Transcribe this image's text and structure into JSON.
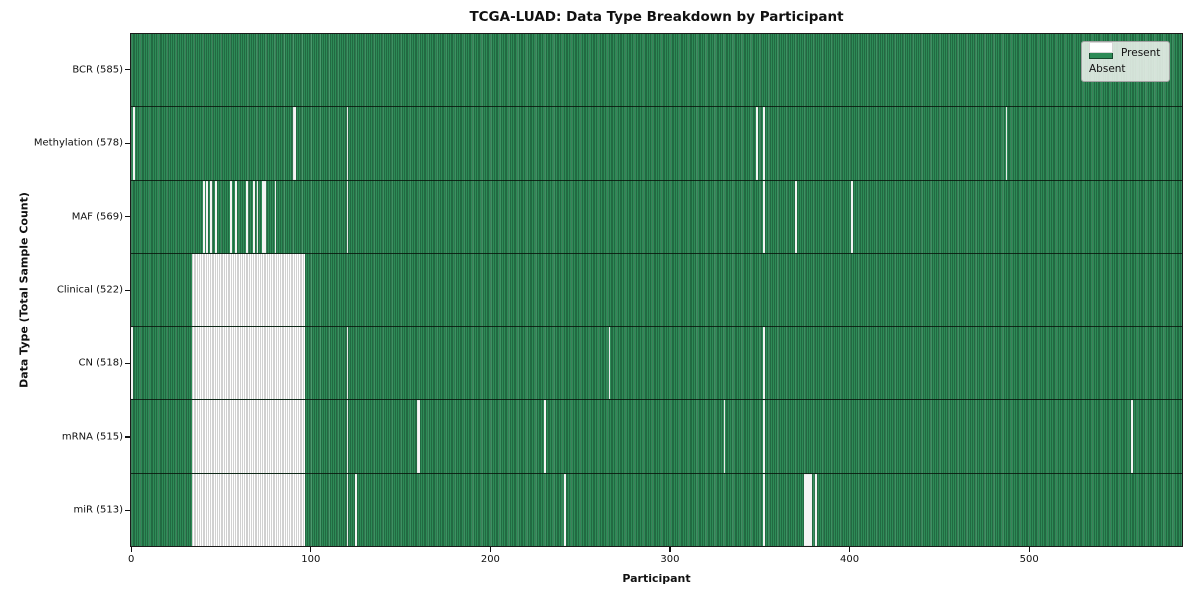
{
  "colors": {
    "present": "#2e8b57",
    "present_edge": "#17492e",
    "absent": "#ffffff",
    "absent_edge": "#a3a3a3",
    "legend_bg": "rgba(236,240,236,0.88)",
    "legend_border": "#a3a3a3"
  },
  "chart_data": {
    "type": "heatmap",
    "title": "TCGA-LUAD: Data Type Breakdown by Participant",
    "xlabel": "Participant",
    "ylabel": "Data Type (Total Sample Count)",
    "xlim": [
      0,
      585
    ],
    "x_ticks": [
      0,
      100,
      200,
      300,
      400,
      500
    ],
    "n_participants": 585,
    "grid": false,
    "legend_position": "upper right",
    "legend_labels": {
      "present": "Present",
      "absent": "Absent"
    },
    "value_encoding": {
      "present": "green column",
      "absent": "white column"
    },
    "rows": [
      {
        "name": "BCR",
        "label": "BCR (585)",
        "present_count": 585,
        "absent_participants": []
      },
      {
        "name": "Methylation",
        "label": "Methylation (578)",
        "present_count": 578,
        "absent_participants": [
          1,
          90,
          91,
          120,
          348,
          352,
          487
        ]
      },
      {
        "name": "MAF",
        "label": "MAF (569)",
        "present_count": 569,
        "absent_participants": [
          40,
          42,
          44,
          47,
          55,
          58,
          64,
          68,
          70,
          73,
          74,
          80,
          120,
          352,
          370,
          401
        ]
      },
      {
        "name": "Clinical",
        "label": "Clinical (522)",
        "present_count": 522,
        "absent_participants": [
          [
            34,
            96
          ]
        ]
      },
      {
        "name": "CN",
        "label": "CN (518)",
        "present_count": 518,
        "absent_participants": [
          0,
          [
            34,
            96
          ],
          120,
          266,
          352
        ]
      },
      {
        "name": "mRNA",
        "label": "mRNA (515)",
        "present_count": 515,
        "absent_participants": [
          [
            34,
            96
          ],
          120,
          159,
          160,
          230,
          330,
          352,
          557
        ]
      },
      {
        "name": "miR",
        "label": "miR (513)",
        "present_count": 513,
        "absent_participants": [
          [
            34,
            96
          ],
          120,
          125,
          241,
          352,
          375,
          376,
          377,
          378,
          381
        ]
      }
    ]
  }
}
